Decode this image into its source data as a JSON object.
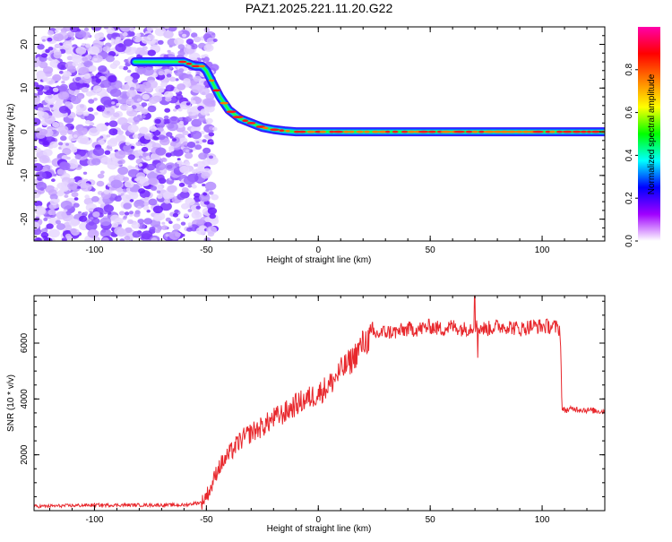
{
  "figure": {
    "title": "PAZ1.2025.221.11.20.G22"
  },
  "chart_data": [
    {
      "type": "heatmap",
      "title": "PAZ1.2025.221.11.20.G22",
      "xlabel": "Height of straight line (km)",
      "ylabel": "Frequency (Hz)",
      "xlim": [
        -127,
        128
      ],
      "ylim": [
        -25,
        24
      ],
      "xticks": [
        -100,
        -50,
        0,
        50,
        100
      ],
      "yticks": [
        -20,
        -10,
        0,
        10,
        20
      ],
      "colorbar": {
        "label": "Normalized spectral amplitude",
        "range": [
          0,
          1
        ],
        "ticks": [
          0.0,
          0.2,
          0.4,
          0.6,
          0.8
        ],
        "colors": [
          "#ffffff",
          "#a000ff",
          "#0000ff",
          "#00ffff",
          "#00ff00",
          "#ffff00",
          "#ff8000",
          "#ff0000",
          "#ff00aa"
        ]
      },
      "ridge": {
        "x": [
          -82,
          -75,
          -65,
          -60,
          -55,
          -52,
          -50,
          -47,
          -44,
          -40,
          -35,
          -30,
          -25,
          -20,
          -15,
          -10,
          0,
          20,
          50,
          80,
          100,
          128
        ],
        "y": [
          16,
          16,
          16,
          16,
          15,
          15,
          14,
          11,
          8,
          5,
          3,
          2,
          1,
          0.5,
          0.2,
          0,
          0,
          0,
          0,
          0,
          0,
          0
        ]
      },
      "noise_region_x": [
        -127,
        -50
      ]
    },
    {
      "type": "line",
      "xlabel": "Height of straight line (km)",
      "ylabel": "SNR (10 * v/v)",
      "xlim": [
        -127,
        128
      ],
      "ylim": [
        0,
        7700
      ],
      "xticks": [
        -100,
        -50,
        0,
        50,
        100
      ],
      "yticks": [
        2000,
        4000,
        6000
      ],
      "series_color": "#e8282d",
      "x": [
        -127,
        -100,
        -60,
        -52,
        -48,
        -45,
        -40,
        -35,
        -30,
        -25,
        -20,
        -15,
        -10,
        -5,
        0,
        5,
        10,
        15,
        20,
        25,
        30,
        35,
        40,
        45,
        50,
        55,
        60,
        65,
        70,
        75,
        80,
        85,
        90,
        95,
        100,
        105,
        108,
        109,
        110,
        115,
        120,
        128
      ],
      "y": [
        150,
        200,
        200,
        300,
        800,
        1500,
        2000,
        2500,
        2800,
        3000,
        3300,
        3500,
        3800,
        4000,
        4200,
        4500,
        5000,
        5400,
        6000,
        6300,
        6400,
        6400,
        6500,
        6500,
        6600,
        6500,
        6600,
        6500,
        6600,
        6500,
        6600,
        6600,
        6500,
        6600,
        6600,
        6600,
        6500,
        3600,
        3600,
        3650,
        3600,
        3550
      ]
    }
  ]
}
